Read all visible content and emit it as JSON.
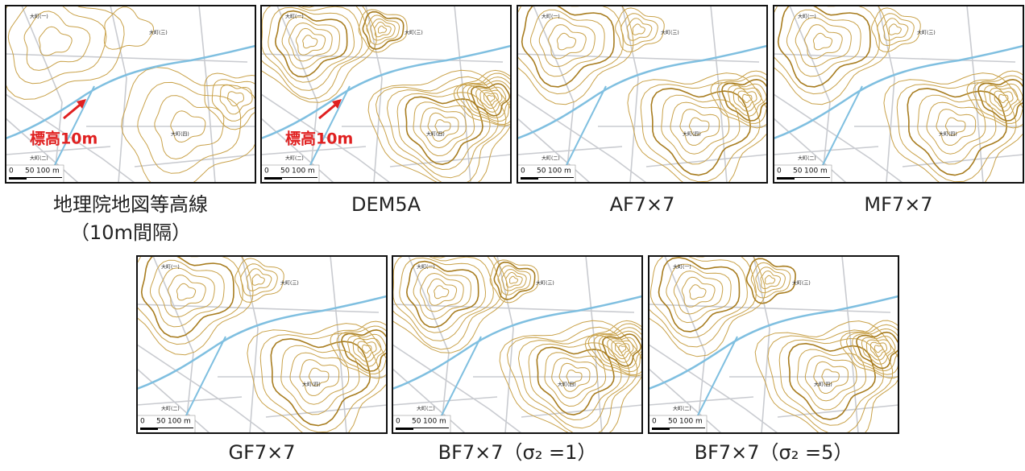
{
  "panels": [
    {
      "caption": [
        "地理院地図等高線",
        "（10m間隔）"
      ],
      "map_labels": [
        "大町(一)",
        "大町(三)",
        "大町(四)",
        "大町(二)"
      ],
      "scale": [
        "0",
        "50",
        "100 m"
      ],
      "annotation": "標高10m"
    },
    {
      "caption": [
        "DEM5A"
      ],
      "map_labels": [
        "大町(一)",
        "大町(三)",
        "大町(四)",
        "大町(二)"
      ],
      "scale": [
        "0",
        "50",
        "100 m"
      ],
      "annotation": "標高10m"
    },
    {
      "caption": [
        "AF7×7"
      ],
      "map_labels": [
        "大町(一)",
        "大町(三)",
        "大町(四)",
        "大町(二)"
      ],
      "scale": [
        "0",
        "50",
        "100 m"
      ]
    },
    {
      "caption": [
        "MF7×7"
      ],
      "map_labels": [
        "大町(一)",
        "大町(三)",
        "大町(四)",
        "大町(二)"
      ],
      "scale": [
        "0",
        "50",
        "100 m"
      ]
    },
    {
      "caption": [
        "GF7×7"
      ],
      "map_labels": [
        "大町(一)",
        "大町(三)",
        "大町(四)",
        "大町(二)"
      ],
      "scale": [
        "0",
        "50",
        "100 m"
      ]
    },
    {
      "caption": [
        "BF7×7（σ₂ =1）"
      ],
      "map_labels": [
        "大町(一)",
        "大町(三)",
        "大町(四)",
        "大町(二)"
      ],
      "scale": [
        "0",
        "50",
        "100 m"
      ]
    },
    {
      "caption": [
        "BF7×7（σ₂ =5）"
      ],
      "map_labels": [
        "大町(一)",
        "大町(三)",
        "大町(四)",
        "大町(二)"
      ],
      "scale": [
        "0",
        "50",
        "100 m"
      ]
    }
  ]
}
